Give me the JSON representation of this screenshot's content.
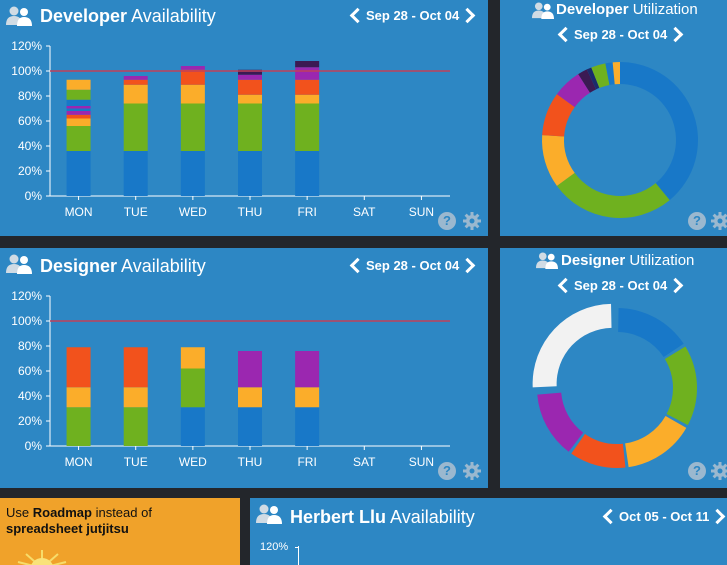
{
  "colors": {
    "blue": "#1878c8",
    "green": "#6fb11f",
    "orange": "#fbad2a",
    "red": "#f2521c",
    "purple": "#9b27b0",
    "darkpurple": "#3b1a53",
    "navy": "#1b2a6b",
    "yellow": "#f4c42a",
    "white": "#f2f2f2",
    "refline": "#c0415a"
  },
  "developer_panel": {
    "title_bold": "Developer",
    "title_rest": "Availability",
    "range": "Sep 28 - Oct 04",
    "help": "?"
  },
  "developer_util": {
    "title_bold": "Developer",
    "title_rest": "Utilization",
    "range": "Sep 28 - Oct 04",
    "help": "?"
  },
  "designer_panel": {
    "title_bold": "Designer",
    "title_rest": "Availability",
    "range": "Sep 28 - Oct 04",
    "help": "?"
  },
  "designer_util": {
    "title_bold": "Designer",
    "title_rest": "Utilization",
    "range": "Sep 28 - Oct 04",
    "help": "?"
  },
  "promo": {
    "line1_pre": "Use ",
    "line1_bold": "Roadmap",
    "line1_post": " instead of",
    "line2_bold": "spreadsheet jutjitsu"
  },
  "herbert_panel": {
    "title_bold": "Herbert Llu",
    "title_rest": "Availability",
    "range": "Oct 05 - Oct 11",
    "ytick_top": "120%"
  },
  "chart_data": [
    {
      "id": "developer-availability",
      "type": "bar",
      "categories": [
        "MON",
        "TUE",
        "WED",
        "THU",
        "FRI",
        "SAT",
        "SUN"
      ],
      "yticks": [
        "0%",
        "20%",
        "40%",
        "60%",
        "80%",
        "100%",
        "120%"
      ],
      "ylim": [
        0,
        120
      ],
      "reference_line": 100,
      "stacks": [
        [
          {
            "v": 36,
            "c": "blue"
          },
          {
            "v": 20,
            "c": "green"
          },
          {
            "v": 6,
            "c": "orange"
          },
          {
            "v": 3,
            "c": "red"
          },
          {
            "v": 3,
            "c": "purple"
          },
          {
            "v": 2,
            "c": "blue"
          },
          {
            "v": 2,
            "c": "purple"
          },
          {
            "v": 5,
            "c": "blue"
          },
          {
            "v": 8,
            "c": "green"
          },
          {
            "v": 8,
            "c": "orange"
          }
        ],
        [
          {
            "v": 36,
            "c": "blue"
          },
          {
            "v": 38,
            "c": "green"
          },
          {
            "v": 15,
            "c": "orange"
          },
          {
            "v": 4,
            "c": "red"
          },
          {
            "v": 3,
            "c": "purple"
          }
        ],
        [
          {
            "v": 36,
            "c": "blue"
          },
          {
            "v": 38,
            "c": "green"
          },
          {
            "v": 15,
            "c": "orange"
          },
          {
            "v": 12,
            "c": "red"
          },
          {
            "v": 3,
            "c": "purple"
          }
        ],
        [
          {
            "v": 36,
            "c": "blue"
          },
          {
            "v": 38,
            "c": "green"
          },
          {
            "v": 7,
            "c": "orange"
          },
          {
            "v": 12,
            "c": "red"
          },
          {
            "v": 4,
            "c": "purple"
          },
          {
            "v": 4,
            "c": "darkpurple"
          }
        ],
        [
          {
            "v": 36,
            "c": "blue"
          },
          {
            "v": 38,
            "c": "green"
          },
          {
            "v": 7,
            "c": "orange"
          },
          {
            "v": 12,
            "c": "red"
          },
          {
            "v": 10,
            "c": "purple"
          },
          {
            "v": 5,
            "c": "darkpurple"
          }
        ],
        [],
        []
      ]
    },
    {
      "id": "developer-utilization",
      "type": "pie",
      "slices": [
        {
          "v": 0.39,
          "c": "blue"
        },
        {
          "v": 0.26,
          "c": "green"
        },
        {
          "v": 0.11,
          "c": "orange"
        },
        {
          "v": 0.09,
          "c": "red"
        },
        {
          "v": 0.06,
          "c": "purple"
        },
        {
          "v": 0.02,
          "c": "darkpurple"
        },
        {
          "v": 0.01,
          "c": "navy"
        },
        {
          "v": 0.03,
          "c": "green"
        },
        {
          "v": 0.015,
          "c": "blue"
        },
        {
          "v": 0.015,
          "c": "orange"
        }
      ]
    },
    {
      "id": "designer-availability",
      "type": "bar",
      "categories": [
        "MON",
        "TUE",
        "WED",
        "THU",
        "FRI",
        "SAT",
        "SUN"
      ],
      "yticks": [
        "0%",
        "20%",
        "40%",
        "60%",
        "80%",
        "100%",
        "120%"
      ],
      "ylim": [
        0,
        120
      ],
      "reference_line": 100,
      "stacks": [
        [
          {
            "v": 31,
            "c": "green"
          },
          {
            "v": 16,
            "c": "orange"
          },
          {
            "v": 32,
            "c": "red"
          }
        ],
        [
          {
            "v": 31,
            "c": "green"
          },
          {
            "v": 16,
            "c": "orange"
          },
          {
            "v": 32,
            "c": "red"
          }
        ],
        [
          {
            "v": 31,
            "c": "blue"
          },
          {
            "v": 31,
            "c": "green"
          },
          {
            "v": 17,
            "c": "orange"
          }
        ],
        [
          {
            "v": 31,
            "c": "blue"
          },
          {
            "v": 16,
            "c": "orange"
          },
          {
            "v": 29,
            "c": "purple"
          }
        ],
        [
          {
            "v": 31,
            "c": "blue"
          },
          {
            "v": 16,
            "c": "orange"
          },
          {
            "v": 29,
            "c": "purple"
          }
        ],
        [],
        []
      ]
    },
    {
      "id": "designer-utilization",
      "type": "pie",
      "slices": [
        {
          "v": 0.16,
          "c": "blue"
        },
        {
          "v": 0.17,
          "c": "green"
        },
        {
          "v": 0.15,
          "c": "orange"
        },
        {
          "v": 0.12,
          "c": "red"
        },
        {
          "v": 0.14,
          "c": "purple"
        },
        {
          "v": 0.26,
          "c": "white",
          "detached": true
        }
      ]
    }
  ]
}
